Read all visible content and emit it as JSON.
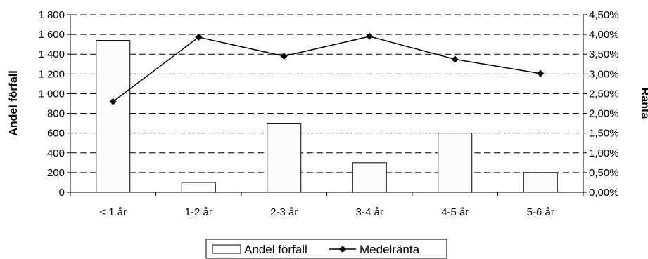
{
  "chart_data": {
    "type": "bar",
    "categories": [
      "< 1 år",
      "1-2 år",
      "2-3 år",
      "3-4 år",
      "4-5 år",
      "5-6 år"
    ],
    "series": [
      {
        "name": "Andel förfall",
        "type": "bar",
        "axis": "left",
        "values": [
          1540,
          100,
          700,
          300,
          600,
          200
        ],
        "color": "#fbfbfb"
      },
      {
        "name": "Medelränta",
        "type": "line",
        "axis": "right",
        "values": [
          2.3,
          3.93,
          3.45,
          3.95,
          3.37,
          3.01
        ],
        "color": "#000000"
      }
    ],
    "ylabel": "Andel förfall",
    "y2label": "Ränta",
    "ylim": [
      0,
      1800
    ],
    "y2lim": [
      0,
      4.5
    ],
    "yticks": [
      "0",
      "200",
      "400",
      "600",
      "800",
      "1 000",
      "1 200",
      "1 400",
      "1 600",
      "1 800"
    ],
    "y2ticks": [
      "0,00%",
      "0,50%",
      "1,00%",
      "1,50%",
      "2,00%",
      "2,50%",
      "3,00%",
      "3,50%",
      "4,00%",
      "4,50%"
    ],
    "grid": true,
    "legend": "bottom-center"
  }
}
